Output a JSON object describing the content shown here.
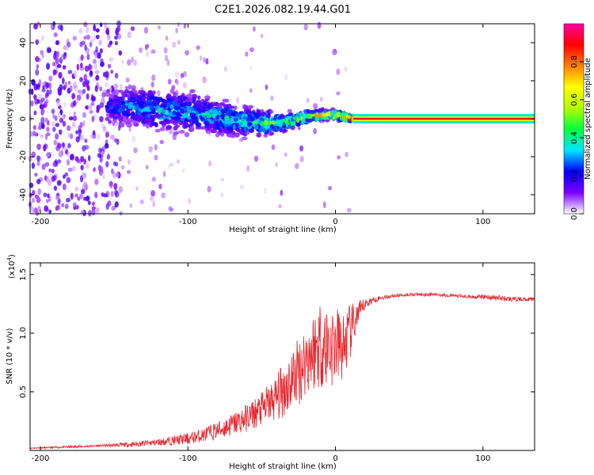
{
  "chart_data": [
    {
      "type": "heatmap",
      "title": "C2E1.2026.082.19.44.G01",
      "xlabel": "Height of straight line (km)",
      "ylabel": "Frequency (Hz)",
      "xlim": [
        -207,
        135
      ],
      "ylim": [
        -50,
        50
      ],
      "xticks": [
        -200,
        -100,
        0,
        100
      ],
      "yticks": [
        -40,
        -20,
        0,
        20,
        40
      ],
      "colorbar": {
        "label": "Normalized spectral amplitude",
        "range": [
          0,
          1
        ],
        "ticks": [
          "0.0",
          "0.2",
          "0.4",
          "0.6",
          "0.8"
        ],
        "tick_values": [
          0.0,
          0.2,
          0.4,
          0.6,
          0.8
        ],
        "colormap": [
          "#ffffff",
          "#7b00ff",
          "#0000ff",
          "#00e5ff",
          "#00ff40",
          "#b4ff00",
          "#ffff00",
          "#ff8000",
          "#ff0000",
          "#ff00a0"
        ]
      },
      "signal_track": [
        {
          "x": -155,
          "freq": 6,
          "spread": 4,
          "amp": 0.25
        },
        {
          "x": -140,
          "freq": 7,
          "spread": 6,
          "amp": 0.3
        },
        {
          "x": -125,
          "freq": 5,
          "spread": 6,
          "amp": 0.35
        },
        {
          "x": -110,
          "freq": 4,
          "spread": 6,
          "amp": 0.35
        },
        {
          "x": -95,
          "freq": 3,
          "spread": 6,
          "amp": 0.35
        },
        {
          "x": -80,
          "freq": 1,
          "spread": 5,
          "amp": 0.4
        },
        {
          "x": -65,
          "freq": -1,
          "spread": 5,
          "amp": 0.4
        },
        {
          "x": -50,
          "freq": -2,
          "spread": 4,
          "amp": 0.45
        },
        {
          "x": -35,
          "freq": -2,
          "spread": 3,
          "amp": 0.5
        },
        {
          "x": -20,
          "freq": 1,
          "spread": 2,
          "amp": 0.6
        },
        {
          "x": -10,
          "freq": 2,
          "spread": 1.5,
          "amp": 0.75
        },
        {
          "x": 0,
          "freq": 2,
          "spread": 1.5,
          "amp": 0.8
        },
        {
          "x": 12,
          "freq": 0,
          "spread": 1,
          "amp": 0.95
        },
        {
          "x": 135,
          "freq": 0,
          "spread": 1,
          "amp": 0.95
        }
      ]
    },
    {
      "type": "line",
      "xlabel": "Height of straight line (km)",
      "ylabel": "SNR (10 * v/v)",
      "y_multiplier": "(x10",
      "y_multiplier_exp": "4",
      "y_multiplier_close": ")",
      "xlim": [
        -207,
        135
      ],
      "ylim": [
        0,
        1.6
      ],
      "xticks": [
        -200,
        -100,
        0,
        100
      ],
      "yticks": [
        0.5,
        1.0,
        1.5
      ],
      "ytick_labels": [
        "0.5",
        "1.0",
        "1.5"
      ],
      "series": [
        {
          "name": "SNR",
          "color": "#e8232a",
          "x": [
            -207,
            -180,
            -160,
            -140,
            -120,
            -100,
            -90,
            -80,
            -70,
            -60,
            -50,
            -40,
            -35,
            -30,
            -25,
            -20,
            -15,
            -10,
            -5,
            0,
            5,
            10,
            15,
            20,
            25,
            30,
            40,
            50,
            60,
            70,
            80,
            90,
            100,
            110,
            120,
            135
          ],
          "values": [
            0.02,
            0.03,
            0.04,
            0.05,
            0.07,
            0.1,
            0.13,
            0.17,
            0.22,
            0.28,
            0.35,
            0.45,
            0.52,
            0.6,
            0.68,
            0.78,
            0.85,
            0.92,
            0.88,
            0.9,
            0.88,
            1.0,
            1.15,
            1.25,
            1.28,
            1.3,
            1.32,
            1.33,
            1.33,
            1.33,
            1.32,
            1.31,
            1.31,
            1.3,
            1.29,
            1.29
          ],
          "noise": [
            0.005,
            0.01,
            0.01,
            0.02,
            0.03,
            0.05,
            0.06,
            0.08,
            0.1,
            0.12,
            0.15,
            0.2,
            0.25,
            0.28,
            0.3,
            0.32,
            0.35,
            0.4,
            0.38,
            0.35,
            0.3,
            0.25,
            0.12,
            0.05,
            0.03,
            0.02,
            0.015,
            0.015,
            0.015,
            0.015,
            0.015,
            0.015,
            0.02,
            0.03,
            0.02,
            0.015
          ]
        }
      ]
    }
  ]
}
